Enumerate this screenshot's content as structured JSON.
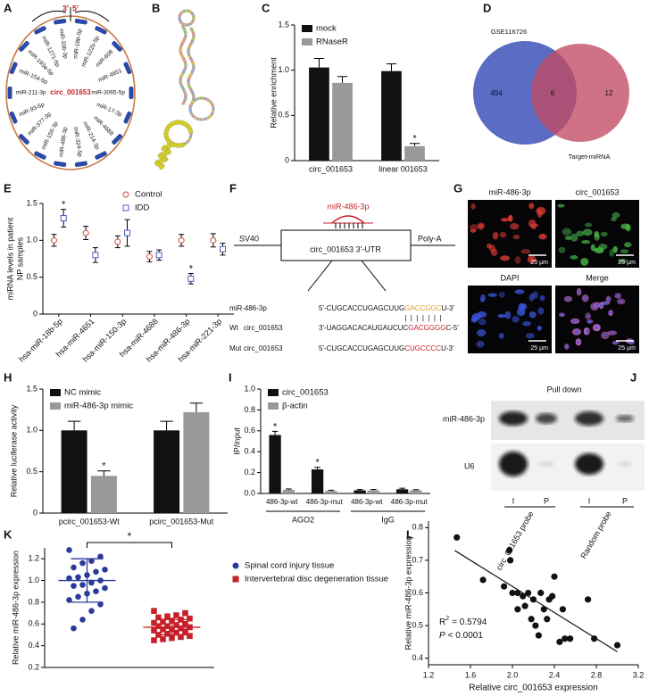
{
  "circ_map": {
    "panel": "A",
    "center": "circ_001653",
    "junction": [
      "3'",
      "5'"
    ],
    "mirnas": [
      "miR-18b-5p",
      "miR-122b-5p",
      "miR-608",
      "miR-4651",
      "miR-3065-5p",
      "miR-17-3p",
      "miR-4688",
      "miR-214-3p",
      "miR-324-5p",
      "miR-486-3p",
      "miR-150-3p",
      "miR-377-3p",
      "miR-93-5p",
      "miR-211-3p",
      "miR-154-5p",
      "miR-193a-5p",
      "miR-1271-5p",
      "miR-33b-3p"
    ]
  },
  "structure": {
    "panel": "B"
  },
  "venn": {
    "panel": "D",
    "left": "GSE116726",
    "right": "Target-miRNA",
    "left_only": 494,
    "both": 6,
    "right_only": 12
  },
  "construct": {
    "panel": "F",
    "mirna": "miR-486-3p",
    "promoter": "SV40",
    "insert": "circ_001653 3'-UTR",
    "polya": "Poly-A",
    "pairing": "|||||||",
    "rows": [
      {
        "name": "miR-486-3p",
        "seq": [
          "5'-CUGCACCUGAGCUUG",
          "GACCGGC",
          "U-3'"
        ]
      },
      {
        "tag": "Wt",
        "name": "circ_001653",
        "seq": [
          "3'-UAGGACACAUGAUCUC",
          "GACGGGG",
          "C-5'"
        ]
      },
      {
        "tag": "Mut",
        "name": "circ_001653",
        "seq": [
          "5'-CUGCACCUGAGCUUG",
          "CUGCCCC",
          "U-3'"
        ]
      }
    ]
  },
  "imaging": {
    "panel": "G",
    "images": [
      {
        "title": "miR-486-3p",
        "scale": "25 μm"
      },
      {
        "title": "circ_001653",
        "scale": "25 μm"
      },
      {
        "title": "DAPI",
        "scale": "25 μm"
      },
      {
        "title": "Merge",
        "scale": "25 μm"
      }
    ]
  },
  "pulldown": {
    "panel": "J",
    "title": "Pull down",
    "rows": [
      "miR-486-3p",
      "U6"
    ],
    "lanes": [
      "I",
      "P",
      "I",
      "P"
    ],
    "probes": [
      "circ_001653 probe",
      "Random probe"
    ]
  },
  "chart_data": [
    {
      "panel": "C",
      "type": "bar",
      "y_label": "Relative enrichment",
      "categories": [
        "circ_001653",
        "linear 001653"
      ],
      "series": [
        {
          "name": "mock",
          "color": "#111111",
          "values": [
            1.03,
            0.99
          ],
          "errors": [
            0.1,
            0.08
          ]
        },
        {
          "name": "RNaseR",
          "color": "#999999",
          "values": [
            0.86,
            0.16
          ],
          "errors": [
            0.07,
            0.03
          ],
          "significance": [
            null,
            "*"
          ]
        }
      ],
      "ylim": [
        0,
        1.5
      ],
      "yticks": [
        0,
        0.5,
        {
          "value": 1,
          "label": "1.0"
        },
        1.5
      ],
      "legend": "top-left"
    },
    {
      "panel": "E",
      "type": "point",
      "y_label": [
        "miRNA levels in patient",
        "NP samples"
      ],
      "categories": [
        "hsa-miR-18b-5p",
        "hsa-miR-4651",
        "hsa-miR-150-3p",
        "hsa-miR-4688",
        "hsa-miR-486-3p",
        "hsa-miR-221-3p"
      ],
      "series": [
        {
          "name": "Control",
          "color": "#d04a3a",
          "marker": "circle-open",
          "values": [
            1.0,
            1.1,
            0.98,
            0.78,
            1.0,
            1.0
          ],
          "errors": [
            0.08,
            0.09,
            0.08,
            0.07,
            0.08,
            0.09
          ]
        },
        {
          "name": "IDD",
          "color": "#4a5fc0",
          "marker": "square-open",
          "values": [
            1.3,
            0.8,
            1.1,
            0.8,
            0.48,
            0.88
          ],
          "errors": [
            0.12,
            0.1,
            0.18,
            0.07,
            0.07,
            0.08
          ],
          "significance": [
            "*",
            null,
            null,
            null,
            "*",
            null
          ]
        }
      ],
      "ylim": [
        0,
        1.5
      ],
      "yticks": [
        0,
        0.5,
        {
          "value": 1,
          "label": "1.0"
        },
        1.5
      ],
      "legend": "top"
    },
    {
      "panel": "H",
      "type": "bar",
      "y_label": "Relative luciferase activity",
      "categories": [
        "pcirc_001653-Wt",
        "pcirc_001653-Mut"
      ],
      "series": [
        {
          "name": "NC mimic",
          "color": "#111111",
          "values": [
            1.0,
            1.0
          ],
          "errors": [
            0.11,
            0.11
          ]
        },
        {
          "name": "miR-486-3p mimic",
          "color": "#999999",
          "values": [
            0.45,
            1.22
          ],
          "errors": [
            0.06,
            0.11
          ],
          "significance": [
            "*",
            null
          ]
        }
      ],
      "ylim": [
        0,
        1.5
      ],
      "yticks": [
        0,
        0.5,
        {
          "value": 1,
          "label": "1.0"
        },
        1.5
      ],
      "legend": "top-left"
    },
    {
      "panel": "I",
      "type": "bar",
      "y_label": "IP/input",
      "categories": [
        "486-3p-wt",
        "486-3p-mut",
        "486-3p-wt",
        "486-3p-mut"
      ],
      "groups": [
        "AGO2",
        "IgG"
      ],
      "series": [
        {
          "name": "circ_001653",
          "color": "#111111",
          "values": [
            0.56,
            0.23,
            0.03,
            0.04
          ],
          "errors": [
            0.035,
            0.02,
            0.008,
            0.01
          ],
          "significance": [
            "*",
            "*",
            null,
            null
          ]
        },
        {
          "name": "β-actin",
          "color": "#999999",
          "values": [
            0.035,
            0.025,
            0.03,
            0.03
          ],
          "errors": [
            0.008,
            0.006,
            0.008,
            0.006
          ]
        }
      ],
      "ylim": [
        0,
        1
      ],
      "yticks": [
        {
          "value": 0,
          "label": "0.0"
        },
        0.2,
        0.4,
        0.6,
        0.8,
        {
          "value": 1,
          "label": "1.0"
        }
      ],
      "legend": "top-left"
    },
    {
      "panel": "K",
      "type": "dot",
      "y_label": "Relative miR-486-3p expression",
      "comparison": "*",
      "series": [
        {
          "name": "Spinal cord injury tissue",
          "color": "#2b3a9a",
          "marker": "circle",
          "mean": 1.0,
          "sd": 0.2,
          "values": [
            1.28,
            1.22,
            1.18,
            1.16,
            1.12,
            1.1,
            1.08,
            1.05,
            1.03,
            1.02,
            1.0,
            0.98,
            0.96,
            0.95,
            0.93,
            0.9,
            0.88,
            0.85,
            0.82,
            0.78,
            0.72,
            0.64,
            0.56
          ]
        },
        {
          "name": "Intervertebral disc degeneration tissue",
          "color": "#c8202a",
          "marker": "square",
          "mean": 0.57,
          "sd": 0.07,
          "values": [
            0.72,
            0.7,
            0.68,
            0.67,
            0.66,
            0.65,
            0.64,
            0.63,
            0.62,
            0.61,
            0.6,
            0.59,
            0.58,
            0.58,
            0.57,
            0.56,
            0.55,
            0.55,
            0.54,
            0.53,
            0.52,
            0.51,
            0.5,
            0.49,
            0.48,
            0.47,
            0.46,
            0.45
          ]
        }
      ],
      "ylim": [
        0.2,
        1.3
      ],
      "yticks": [
        0.2,
        0.4,
        0.6,
        0.8,
        {
          "value": 1,
          "label": "1.0"
        },
        1.2
      ],
      "legend": "right"
    },
    {
      "panel": "L",
      "type": "scatter",
      "x_label": "Relative circ_001653 expression",
      "y_label": "Relative miR-486-3p expression",
      "color": "#111111",
      "x": [
        1.47,
        1.72,
        1.97,
        1.98,
        1.92,
        2.0,
        2.05,
        2.1,
        2.15,
        2.2,
        2.05,
        2.12,
        2.18,
        2.22,
        2.25,
        2.3,
        2.35,
        2.4,
        2.38,
        2.33,
        2.45,
        2.5,
        2.55,
        2.48,
        2.72,
        2.78,
        3.0,
        2.27
      ],
      "y": [
        0.77,
        0.64,
        0.73,
        0.7,
        0.62,
        0.6,
        0.6,
        0.59,
        0.6,
        0.58,
        0.55,
        0.56,
        0.52,
        0.5,
        0.47,
        0.55,
        0.58,
        0.65,
        0.59,
        0.52,
        0.45,
        0.46,
        0.46,
        0.55,
        0.58,
        0.46,
        0.44,
        0.6
      ],
      "fit": {
        "x": [
          1.45,
          3.0
        ],
        "y": [
          0.73,
          0.42
        ]
      },
      "stats": {
        "r2_symbol": "R",
        "r2_power": "2",
        "r2_text": "= 0.5794",
        "p_symbol": "P",
        "p_text": "< 0.0001"
      },
      "xlim": [
        1.2,
        3.2
      ],
      "xticks": [
        1.2,
        1.6,
        {
          "value": 2,
          "label": "2.0"
        },
        2.4,
        2.8,
        3.2
      ],
      "ylim": [
        0.38,
        0.82
      ],
      "yticks": [
        0.4,
        0.5,
        0.6,
        0.7,
        0.8
      ]
    }
  ]
}
